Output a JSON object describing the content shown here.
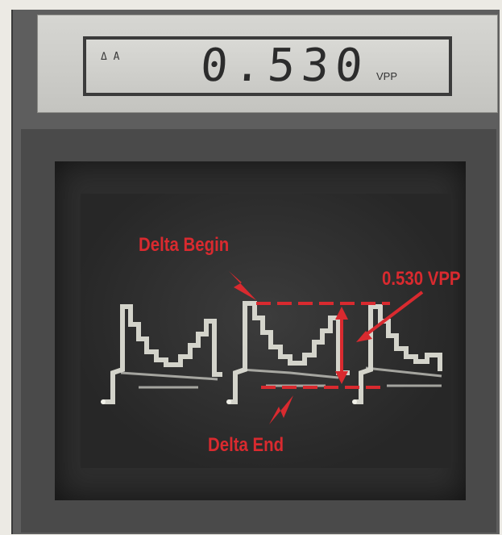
{
  "display": {
    "mode_label": "Δ A",
    "reading": "0.530",
    "unit": "VPP"
  },
  "annotations": {
    "begin_label": "Delta Begin",
    "end_label": "Delta End",
    "measurement_label": "0.530 VPP"
  },
  "colors": {
    "annotation": "#d92a2f",
    "trace": "#e8e8e0",
    "lcd": "#d2d2ce"
  }
}
